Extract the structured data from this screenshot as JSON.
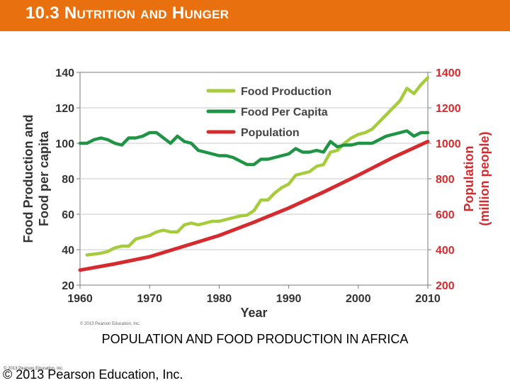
{
  "slide": {
    "title": "10.3 Nutrition and Hunger",
    "caption": "POPULATION AND FOOD PRODUCTION IN AFRICA",
    "copyright_small": "© 2013 Pearson Education, Inc.",
    "copyright_main": "© 2013 Pearson Education, Inc.",
    "accent_color": "#e8700f"
  },
  "chart_data": {
    "type": "line",
    "title": "",
    "xlabel": "Year",
    "ylabel_left": "Food Production and Food per capita",
    "ylabel_right": "Population (million people)",
    "copyright_inner": "© 2013 Pearson Education, Inc.",
    "xlim": [
      1960,
      2010
    ],
    "ylim_left": [
      20,
      140
    ],
    "ylim_right": [
      200,
      1400
    ],
    "x_ticks": [
      "1960",
      "1970",
      "1980",
      "1990",
      "2000",
      "2010"
    ],
    "y_ticks_left": [
      "20",
      "40",
      "60",
      "80",
      "100",
      "120",
      "140"
    ],
    "y_ticks_right": [
      "200",
      "400",
      "600",
      "800",
      "1000",
      "1200",
      "1400"
    ],
    "legend_position": "top-center",
    "grid": "horizontal",
    "series": [
      {
        "name": "Food Production",
        "color": "#a6cc3e",
        "axis": "left",
        "x": [
          1961,
          1962,
          1963,
          1964,
          1965,
          1966,
          1967,
          1968,
          1969,
          1970,
          1971,
          1972,
          1973,
          1974,
          1975,
          1976,
          1977,
          1978,
          1979,
          1980,
          1981,
          1982,
          1983,
          1984,
          1985,
          1986,
          1987,
          1988,
          1989,
          1990,
          1991,
          1992,
          1993,
          1994,
          1995,
          1996,
          1997,
          1998,
          1999,
          2000,
          2001,
          2002,
          2003,
          2004,
          2005,
          2006,
          2007,
          2008,
          2009,
          2010
        ],
        "values": [
          37,
          37.5,
          38,
          39,
          41,
          42,
          42,
          46,
          47,
          48,
          50,
          51,
          50,
          50,
          54,
          55,
          54,
          55,
          56,
          56,
          57,
          58,
          59,
          59.5,
          62,
          68,
          68,
          72,
          75,
          77,
          82,
          83,
          84,
          87,
          88,
          95,
          96,
          100,
          103,
          105,
          106,
          108,
          112,
          116,
          120,
          124,
          131,
          128,
          133,
          137
        ]
      },
      {
        "name": "Food Per Capita",
        "color": "#1f9444",
        "axis": "left",
        "x": [
          1960,
          1961,
          1962,
          1963,
          1964,
          1965,
          1966,
          1967,
          1968,
          1969,
          1970,
          1971,
          1972,
          1973,
          1974,
          1975,
          1976,
          1977,
          1978,
          1979,
          1980,
          1981,
          1982,
          1983,
          1984,
          1985,
          1986,
          1987,
          1988,
          1989,
          1990,
          1991,
          1992,
          1993,
          1994,
          1995,
          1996,
          1997,
          1998,
          1999,
          2000,
          2001,
          2002,
          2003,
          2004,
          2005,
          2006,
          2007,
          2008,
          2009,
          2010
        ],
        "values": [
          100,
          100,
          102,
          103,
          102,
          100,
          99,
          103,
          103,
          104,
          106,
          106,
          103,
          100,
          104,
          101,
          100,
          96,
          95,
          94,
          93,
          93,
          92,
          90,
          88,
          88,
          91,
          91,
          92,
          93,
          94,
          97,
          95,
          95,
          96,
          95,
          101,
          98,
          99,
          99,
          100,
          100,
          100,
          102,
          104,
          105,
          106,
          107,
          104,
          106,
          106
        ]
      },
      {
        "name": "Population",
        "color": "#d52b2e",
        "axis": "right",
        "x": [
          1960,
          1965,
          1970,
          1975,
          1980,
          1985,
          1990,
          1995,
          2000,
          2005,
          2010
        ],
        "values": [
          285,
          320,
          360,
          420,
          480,
          555,
          635,
          725,
          820,
          920,
          1010
        ]
      }
    ]
  }
}
